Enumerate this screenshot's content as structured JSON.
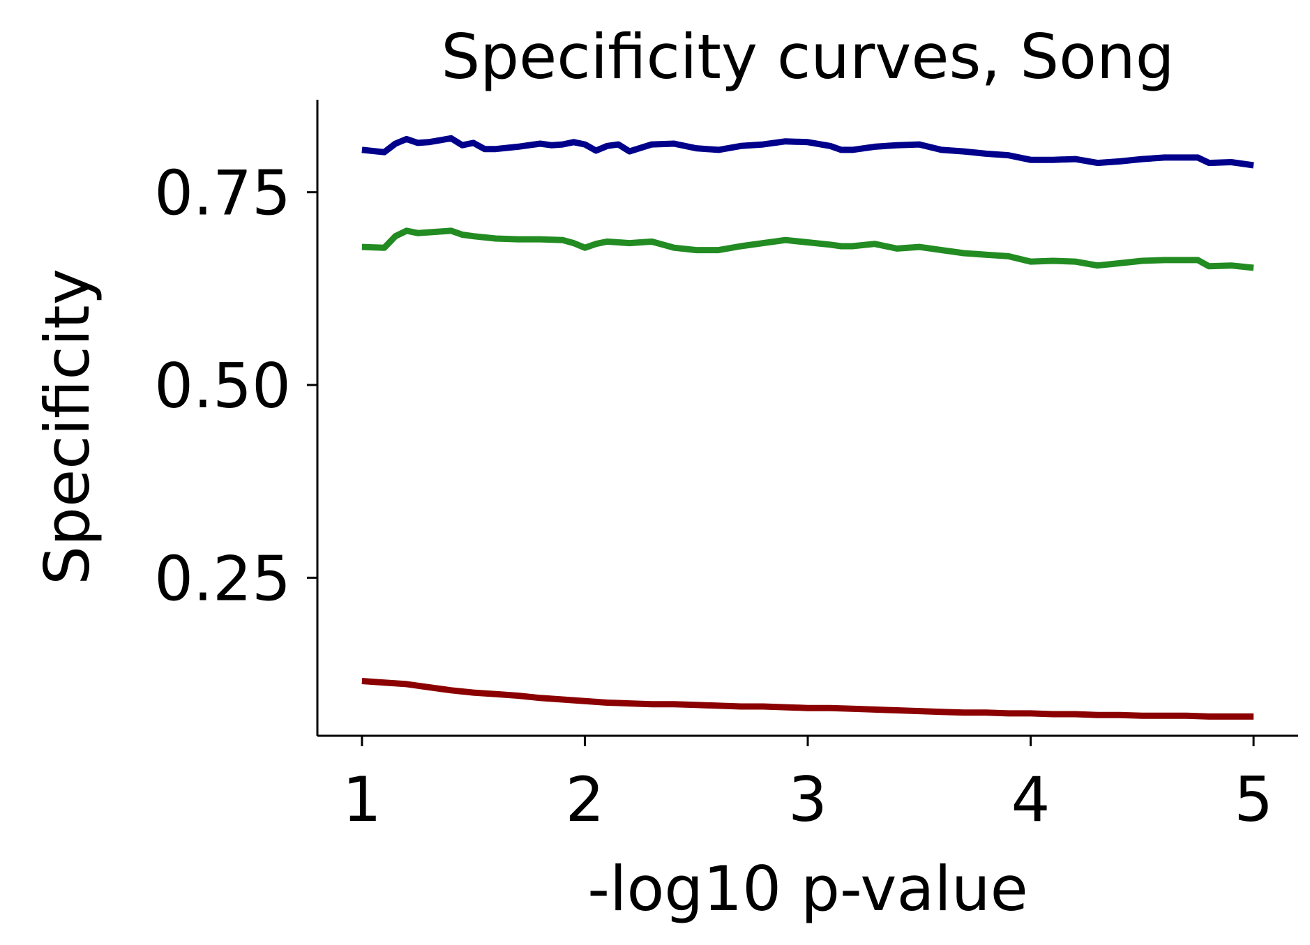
{
  "chart_data": {
    "type": "line",
    "title": "Specificity curves, Song",
    "xlabel": "-log10 p-value",
    "ylabel": "Specificity",
    "xlim": [
      0.8,
      5.2
    ],
    "ylim": [
      0.045,
      0.87
    ],
    "xticks": [
      1,
      2,
      3,
      4,
      5
    ],
    "xtick_labels": [
      "1",
      "2",
      "3",
      "4",
      "5"
    ],
    "yticks": [
      0.25,
      0.5,
      0.75
    ],
    "ytick_labels": [
      "0.25",
      "0.50",
      "0.75"
    ],
    "grid": false,
    "legend": "none",
    "series": [
      {
        "color": "#00008b",
        "x": [
          1,
          1.1,
          1.15,
          1.2,
          1.25,
          1.3,
          1.4,
          1.45,
          1.5,
          1.55,
          1.6,
          1.7,
          1.8,
          1.85,
          1.9,
          1.95,
          2.0,
          2.05,
          2.1,
          2.15,
          2.2,
          2.3,
          2.4,
          2.5,
          2.6,
          2.7,
          2.8,
          2.9,
          3.0,
          3.1,
          3.15,
          3.2,
          3.3,
          3.4,
          3.5,
          3.6,
          3.7,
          3.8,
          3.9,
          4.0,
          4.1,
          4.2,
          4.3,
          4.4,
          4.5,
          4.6,
          4.7,
          4.75,
          4.8,
          4.9,
          5.0
        ],
        "y": [
          0.805,
          0.802,
          0.813,
          0.819,
          0.814,
          0.815,
          0.82,
          0.811,
          0.814,
          0.806,
          0.806,
          0.809,
          0.813,
          0.811,
          0.812,
          0.815,
          0.812,
          0.804,
          0.81,
          0.812,
          0.803,
          0.812,
          0.813,
          0.807,
          0.805,
          0.81,
          0.812,
          0.816,
          0.815,
          0.81,
          0.805,
          0.805,
          0.809,
          0.811,
          0.812,
          0.805,
          0.803,
          0.8,
          0.798,
          0.792,
          0.792,
          0.793,
          0.788,
          0.79,
          0.793,
          0.795,
          0.795,
          0.795,
          0.788,
          0.789,
          0.785
        ]
      },
      {
        "color": "#228b22",
        "x": [
          1,
          1.1,
          1.15,
          1.2,
          1.25,
          1.3,
          1.4,
          1.45,
          1.5,
          1.6,
          1.7,
          1.8,
          1.9,
          1.95,
          2.0,
          2.05,
          2.1,
          2.2,
          2.3,
          2.4,
          2.5,
          2.6,
          2.7,
          2.8,
          2.9,
          3.0,
          3.1,
          3.15,
          3.2,
          3.3,
          3.4,
          3.5,
          3.6,
          3.7,
          3.8,
          3.9,
          4.0,
          4.1,
          4.2,
          4.3,
          4.4,
          4.5,
          4.6,
          4.7,
          4.75,
          4.8,
          4.9,
          5.0
        ],
        "y": [
          0.679,
          0.678,
          0.693,
          0.7,
          0.697,
          0.698,
          0.7,
          0.695,
          0.693,
          0.69,
          0.689,
          0.689,
          0.688,
          0.684,
          0.678,
          0.683,
          0.686,
          0.684,
          0.686,
          0.678,
          0.675,
          0.675,
          0.68,
          0.684,
          0.688,
          0.685,
          0.682,
          0.68,
          0.68,
          0.683,
          0.677,
          0.679,
          0.675,
          0.671,
          0.669,
          0.667,
          0.66,
          0.661,
          0.66,
          0.655,
          0.658,
          0.661,
          0.662,
          0.662,
          0.662,
          0.654,
          0.655,
          0.652
        ]
      },
      {
        "color": "#8b0000",
        "x": [
          1,
          1.1,
          1.2,
          1.3,
          1.4,
          1.5,
          1.6,
          1.7,
          1.8,
          1.9,
          2.0,
          2.1,
          2.2,
          2.3,
          2.4,
          2.5,
          2.6,
          2.7,
          2.8,
          2.9,
          3.0,
          3.1,
          3.2,
          3.3,
          3.4,
          3.5,
          3.6,
          3.7,
          3.8,
          3.9,
          4.0,
          4.1,
          4.2,
          4.3,
          4.4,
          4.5,
          4.6,
          4.7,
          4.8,
          4.9,
          5.0
        ],
        "y": [
          0.116,
          0.114,
          0.112,
          0.108,
          0.104,
          0.101,
          0.099,
          0.097,
          0.094,
          0.092,
          0.09,
          0.088,
          0.087,
          0.086,
          0.086,
          0.085,
          0.084,
          0.083,
          0.083,
          0.082,
          0.081,
          0.081,
          0.08,
          0.079,
          0.078,
          0.077,
          0.076,
          0.075,
          0.075,
          0.074,
          0.074,
          0.073,
          0.073,
          0.072,
          0.072,
          0.071,
          0.071,
          0.071,
          0.07,
          0.07,
          0.07
        ]
      }
    ]
  }
}
